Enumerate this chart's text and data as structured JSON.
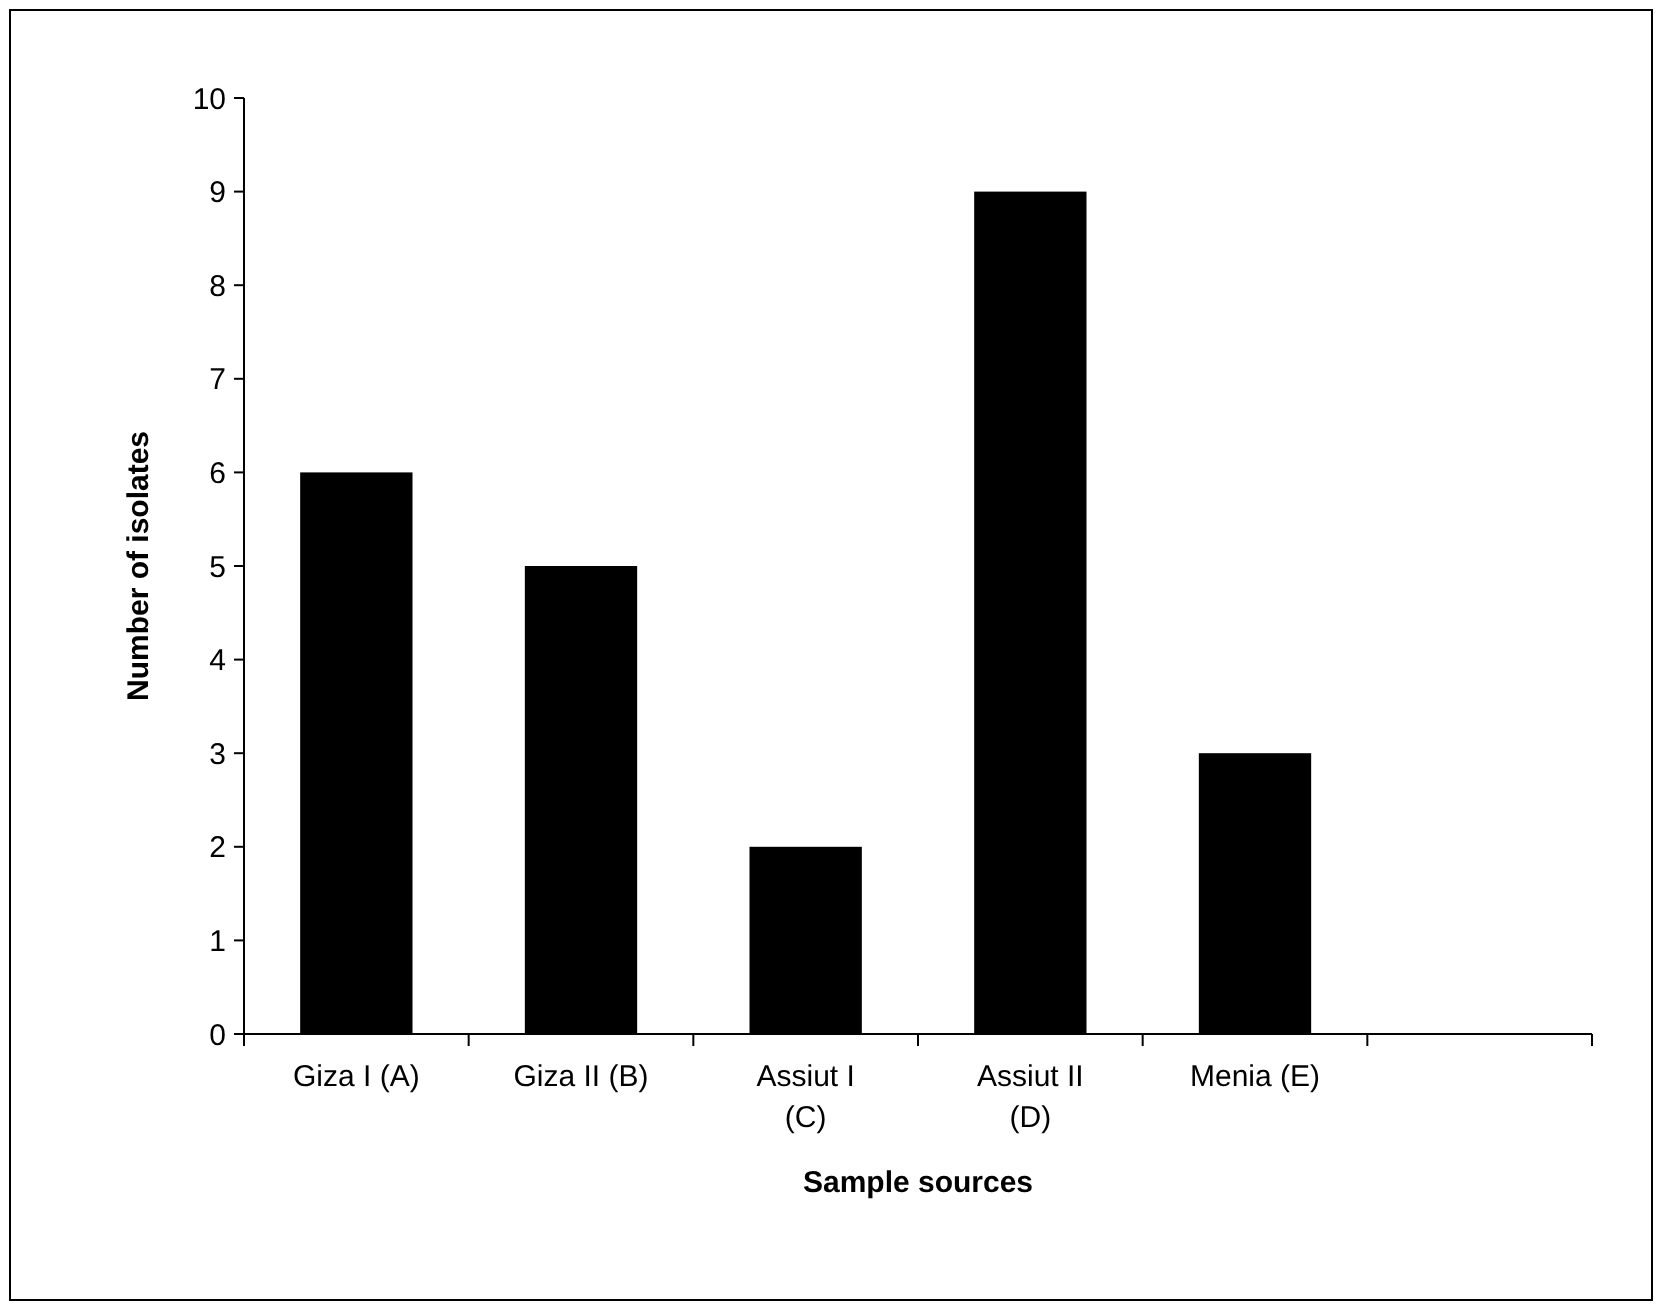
{
  "chart_data": {
    "type": "bar",
    "xlabel": "Sample sources",
    "ylabel": "Number of isolates",
    "categories": [
      "Giza I (A)",
      "Giza II (B)",
      "Assiut I\n(C)",
      "Assiut II\n(D)",
      "Menia (E)",
      null
    ],
    "values": [
      6,
      5,
      2,
      9,
      3,
      null
    ],
    "color": "#000000",
    "ylim": [
      0,
      10
    ],
    "yticks": [
      0,
      1,
      2,
      3,
      4,
      5,
      6,
      7,
      8,
      9,
      10
    ],
    "grid": false
  }
}
